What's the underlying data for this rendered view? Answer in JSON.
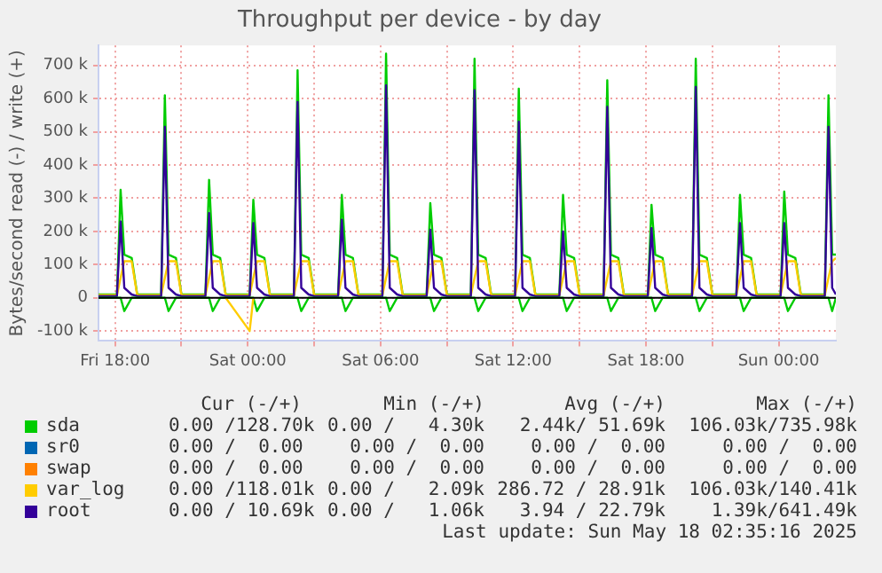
{
  "chart_data": {
    "type": "line",
    "title": "Throughput per device - by day",
    "ylabel": "Bytes/second read (-) / write (+)",
    "x": [
      "2025-05-16T17:15",
      "2025-05-16T18:05",
      "2025-05-16T18:15",
      "2025-05-16T18:25",
      "2025-05-16T18:45",
      "2025-05-16T19:00",
      "2025-05-16T20:05",
      "2025-05-16T20:15",
      "2025-05-16T20:25",
      "2025-05-16T20:45",
      "2025-05-16T21:00",
      "2025-05-16T22:05",
      "2025-05-16T22:15",
      "2025-05-16T22:25",
      "2025-05-16T22:45",
      "2025-05-16T23:00",
      "2025-05-17T00:05",
      "2025-05-17T00:15",
      "2025-05-17T00:25",
      "2025-05-17T00:45",
      "2025-05-17T01:00",
      "2025-05-17T02:05",
      "2025-05-17T02:15",
      "2025-05-17T02:25",
      "2025-05-17T02:45",
      "2025-05-17T03:00",
      "2025-05-17T04:05",
      "2025-05-17T04:15",
      "2025-05-17T04:25",
      "2025-05-17T04:45",
      "2025-05-17T05:00",
      "2025-05-17T06:05",
      "2025-05-17T06:15",
      "2025-05-17T06:25",
      "2025-05-17T06:45",
      "2025-05-17T07:00",
      "2025-05-17T08:05",
      "2025-05-17T08:15",
      "2025-05-17T08:25",
      "2025-05-17T08:45",
      "2025-05-17T09:00",
      "2025-05-17T10:05",
      "2025-05-17T10:15",
      "2025-05-17T10:25",
      "2025-05-17T10:45",
      "2025-05-17T11:00",
      "2025-05-17T12:05",
      "2025-05-17T12:15",
      "2025-05-17T12:25",
      "2025-05-17T12:45",
      "2025-05-17T13:00",
      "2025-05-17T14:05",
      "2025-05-17T14:15",
      "2025-05-17T14:25",
      "2025-05-17T14:45",
      "2025-05-17T15:00",
      "2025-05-17T16:05",
      "2025-05-17T16:15",
      "2025-05-17T16:25",
      "2025-05-17T16:45",
      "2025-05-17T17:00",
      "2025-05-17T18:05",
      "2025-05-17T18:15",
      "2025-05-17T18:25",
      "2025-05-17T18:45",
      "2025-05-17T19:00",
      "2025-05-17T20:05",
      "2025-05-17T20:15",
      "2025-05-17T20:25",
      "2025-05-17T20:45",
      "2025-05-17T21:00",
      "2025-05-17T22:05",
      "2025-05-17T22:15",
      "2025-05-17T22:25",
      "2025-05-17T22:45",
      "2025-05-17T23:00",
      "2025-05-18T00:05",
      "2025-05-18T00:15",
      "2025-05-18T00:25",
      "2025-05-18T00:45",
      "2025-05-18T01:00",
      "2025-05-18T02:05",
      "2025-05-18T02:15",
      "2025-05-18T02:25",
      "2025-05-18T02:35"
    ],
    "series": [
      {
        "name": "sda",
        "color": "#00cc00",
        "values": [
          10000,
          10000,
          325000,
          130000,
          120000,
          10000,
          10000,
          610000,
          130000,
          120000,
          10000,
          10000,
          355000,
          130000,
          120000,
          10000,
          10000,
          295000,
          130000,
          120000,
          10000,
          10000,
          685000,
          130000,
          120000,
          10000,
          10000,
          310000,
          130000,
          120000,
          10000,
          10000,
          735000,
          130000,
          120000,
          10000,
          10000,
          285000,
          130000,
          120000,
          10000,
          10000,
          720000,
          130000,
          120000,
          10000,
          10000,
          630000,
          130000,
          120000,
          10000,
          10000,
          310000,
          130000,
          120000,
          10000,
          10000,
          655000,
          130000,
          120000,
          10000,
          10000,
          280000,
          130000,
          120000,
          10000,
          10000,
          720000,
          130000,
          120000,
          10000,
          10000,
          310000,
          130000,
          120000,
          10000,
          10000,
          320000,
          130000,
          120000,
          10000,
          10000,
          610000,
          130000,
          130000
        ]
      },
      {
        "name": "sr0",
        "color": "#0066b3",
        "values": [
          null,
          null,
          null,
          null,
          null,
          null,
          null,
          null,
          null,
          null,
          null,
          null,
          null,
          null,
          null,
          null,
          null,
          null,
          null,
          null,
          null,
          null,
          null,
          null,
          null,
          null,
          null,
          null,
          null,
          null,
          null,
          null,
          null,
          null,
          null,
          null,
          null,
          null,
          null,
          null,
          null,
          null,
          null,
          null,
          null,
          null,
          null,
          null,
          null,
          null,
          null,
          null,
          null,
          null,
          null,
          null,
          null,
          null,
          null,
          null,
          null,
          null,
          null,
          null,
          null,
          null,
          null,
          null,
          null,
          null,
          null,
          null,
          null,
          null,
          null,
          null,
          null,
          null,
          null,
          null,
          null,
          null,
          null,
          null,
          null
        ]
      },
      {
        "name": "swap",
        "color": "#ff8000",
        "values": [
          null,
          null,
          null,
          null,
          null,
          null,
          null,
          null,
          null,
          null,
          null,
          null,
          null,
          null,
          null,
          null,
          null,
          null,
          null,
          null,
          null,
          null,
          null,
          null,
          null,
          null,
          null,
          null,
          null,
          null,
          null,
          null,
          null,
          null,
          null,
          null,
          null,
          null,
          null,
          null,
          null,
          null,
          null,
          null,
          null,
          null,
          null,
          null,
          null,
          null,
          null,
          null,
          null,
          null,
          null,
          null,
          null,
          null,
          null,
          null,
          null,
          null,
          null,
          null,
          null,
          null,
          null,
          null,
          null,
          null,
          null,
          null,
          null,
          null,
          null,
          null,
          null,
          null,
          null,
          null,
          null,
          null,
          null,
          null,
          null
        ]
      },
      {
        "name": "var_log",
        "color": "#ffcc00",
        "values": [
          8000,
          8000,
          60000,
          110000,
          110000,
          8000,
          8000,
          60000,
          110000,
          110000,
          8000,
          8000,
          60000,
          110000,
          110000,
          8000,
          8000,
          60000,
          110000,
          110000,
          8000,
          8000,
          60000,
          110000,
          110000,
          8000,
          8000,
          60000,
          110000,
          110000,
          8000,
          8000,
          60000,
          110000,
          110000,
          8000,
          8000,
          60000,
          110000,
          110000,
          8000,
          8000,
          60000,
          110000,
          110000,
          8000,
          8000,
          60000,
          110000,
          110000,
          8000,
          8000,
          60000,
          110000,
          110000,
          8000,
          8000,
          60000,
          110000,
          110000,
          8000,
          8000,
          60000,
          110000,
          110000,
          8000,
          8000,
          60000,
          110000,
          110000,
          8000,
          8000,
          60000,
          110000,
          110000,
          8000,
          8000,
          60000,
          110000,
          110000,
          8000,
          8000,
          60000,
          110000,
          120000
        ]
      },
      {
        "name": "root",
        "color": "#330099",
        "values": [
          5000,
          5000,
          230000,
          30000,
          10000,
          5000,
          5000,
          515000,
          30000,
          10000,
          5000,
          5000,
          255000,
          30000,
          10000,
          5000,
          5000,
          225000,
          30000,
          10000,
          5000,
          5000,
          590000,
          30000,
          10000,
          5000,
          5000,
          235000,
          30000,
          10000,
          5000,
          5000,
          640000,
          30000,
          10000,
          5000,
          5000,
          205000,
          30000,
          10000,
          5000,
          5000,
          625000,
          30000,
          10000,
          5000,
          5000,
          530000,
          30000,
          10000,
          5000,
          5000,
          200000,
          30000,
          10000,
          5000,
          5000,
          575000,
          30000,
          10000,
          5000,
          5000,
          210000,
          30000,
          10000,
          5000,
          5000,
          635000,
          30000,
          10000,
          5000,
          5000,
          225000,
          30000,
          10000,
          5000,
          5000,
          225000,
          30000,
          10000,
          5000,
          5000,
          515000,
          30000,
          10000
        ]
      },
      {
        "color": "#00cc00",
        "values": [
          0,
          0,
          0,
          -40000,
          0,
          0,
          0,
          0,
          -40000,
          0,
          0,
          0,
          0,
          -40000,
          0,
          0,
          0,
          0,
          -40000,
          0,
          0,
          0,
          0,
          -40000,
          0,
          0,
          0,
          0,
          -40000,
          0,
          0,
          0,
          0,
          -40000,
          0,
          0,
          0,
          0,
          -40000,
          0,
          0,
          0,
          0,
          -40000,
          0,
          0,
          0,
          0,
          -40000,
          0,
          0,
          0,
          0,
          -40000,
          0,
          0,
          0,
          0,
          -40000,
          0,
          0,
          0,
          0,
          -40000,
          0,
          0,
          0,
          0,
          -40000,
          0,
          0,
          0,
          0,
          -40000,
          0,
          0,
          0,
          0,
          -40000,
          0,
          0,
          0,
          0,
          -40000,
          0
        ]
      },
      {
        "color": "#ffcc00",
        "values": [
          null,
          null,
          null,
          null,
          null,
          null,
          null,
          null,
          null,
          null,
          null,
          null,
          null,
          null,
          null,
          0,
          -100000,
          0,
          null,
          null,
          null,
          null,
          null,
          null,
          null,
          null,
          null,
          null,
          null,
          null,
          null,
          null,
          null,
          null,
          null,
          null,
          null,
          null,
          null,
          null,
          null,
          null,
          null,
          null,
          null,
          null,
          null,
          null,
          null,
          null,
          null,
          null,
          null,
          null,
          null,
          null,
          null,
          null,
          null,
          null,
          null,
          null,
          null,
          null,
          null,
          null,
          null,
          null,
          null,
          null,
          null,
          null,
          null,
          null,
          null,
          null,
          null,
          null,
          null,
          null,
          null,
          null,
          null,
          null,
          null
        ]
      }
    ],
    "xlim": [
      "2025-05-16T17:15",
      "2025-05-18T02:35"
    ],
    "xticks": [
      {
        "value": "2025-05-16T18:00",
        "label": "Fri 18:00"
      },
      {
        "value": "2025-05-16T21:00",
        "label": null
      },
      {
        "value": "2025-05-17T00:00",
        "label": "Sat 00:00"
      },
      {
        "value": "2025-05-17T03:00",
        "label": null
      },
      {
        "value": "2025-05-17T06:00",
        "label": "Sat 06:00"
      },
      {
        "value": "2025-05-17T09:00",
        "label": null
      },
      {
        "value": "2025-05-17T12:00",
        "label": "Sat 12:00"
      },
      {
        "value": "2025-05-17T15:00",
        "label": null
      },
      {
        "value": "2025-05-17T18:00",
        "label": "Sat 18:00"
      },
      {
        "value": "2025-05-17T21:00",
        "label": null
      },
      {
        "value": "2025-05-18T00:00",
        "label": "Sun 00:00"
      }
    ],
    "ylim": [
      -130000,
      760000
    ],
    "yticks": [
      {
        "value": -100000,
        "label": "-100 k"
      },
      0,
      {
        "value": 100000,
        "label": "100 k"
      },
      {
        "value": 200000,
        "label": "200 k"
      },
      {
        "value": 300000,
        "label": "300 k"
      },
      {
        "value": 400000,
        "label": "400 k"
      },
      {
        "value": 500000,
        "label": "500 k"
      },
      {
        "value": 600000,
        "label": "600 k"
      },
      {
        "value": 700000,
        "label": "700 k"
      }
    ],
    "grid": true,
    "legend": "bottom",
    "marker": "none",
    "line_style": "solid",
    "annotations": [
      "Cur (-/+)",
      "Min (-/+)",
      "Avg (-/+)",
      "Max (-/+)",
      "0.00 /128.70k",
      "0.00 /   4.30k",
      "2.44k/ 51.69k",
      "106.03k/735.98k",
      "0.00 /  0.00",
      "0.00 /  0.00",
      "0.00 /  0.00",
      "0.00 /  0.00",
      "0.00 /  0.00",
      "0.00 /  0.00",
      "0.00 /  0.00",
      "0.00 /  0.00",
      "0.00 /118.01k",
      "0.00 /   2.09k",
      "286.72 / 28.91k",
      "106.03k/140.41k",
      "0.00 / 10.69k",
      "0.00 /   1.06k",
      "3.94 / 22.79k",
      "1.39k/641.49k",
      "Last update: Sun May 18 02:35:16 2025"
    ]
  }
}
